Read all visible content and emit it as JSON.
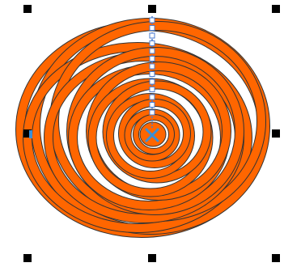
{
  "canvas": {
    "background": "#ffffff"
  },
  "shape": {
    "object_type": "spiral-rings-blend",
    "fill_color": "#ff6600",
    "outline_color": "#333333",
    "ring_count": 12,
    "selected": true
  },
  "selection": {
    "handle_color": "#000000",
    "handle_names": [
      "top-left",
      "top-center",
      "top-right",
      "middle-left",
      "middle-right",
      "bottom-left",
      "bottom-center",
      "bottom-right"
    ]
  },
  "blend_path": {
    "node_color": "#ffffff",
    "node_outline_color": "#4a7bd0",
    "node_count": 13
  },
  "center_marker": {
    "icon": "x-cross-icon",
    "color": "#3a8fd8"
  }
}
